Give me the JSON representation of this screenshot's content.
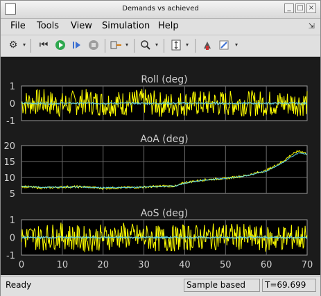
{
  "window": {
    "title": "Demands vs achieved"
  },
  "menu": {
    "items": [
      "File",
      "Tools",
      "View",
      "Simulation",
      "Help"
    ]
  },
  "toolbar": {
    "tools": [
      "gear-icon",
      "step-back-icon",
      "run-icon",
      "step-forward-icon",
      "stop-icon",
      "signal-select-icon",
      "zoom-icon",
      "fit-axes-icon",
      "highlight-icon",
      "style-icon"
    ]
  },
  "plots": [
    {
      "title": "Roll (deg)",
      "yticks": [
        "1",
        "0",
        "-1"
      ],
      "ylim": [
        -1,
        1
      ]
    },
    {
      "title": "AoA (deg)",
      "yticks": [
        "20",
        "15",
        "10",
        "5"
      ],
      "ylim": [
        5,
        20
      ]
    },
    {
      "title": "AoS (deg)",
      "yticks": [
        "1",
        "0",
        "-1"
      ],
      "ylim": [
        -1,
        1
      ]
    }
  ],
  "xticks": [
    "0",
    "10",
    "20",
    "30",
    "40",
    "50",
    "60",
    "70"
  ],
  "xlim": [
    0,
    70
  ],
  "status": {
    "ready": "Ready",
    "mode": "Sample based",
    "time": "T=69.699"
  },
  "colors": {
    "demand": "#ffff00",
    "achieved": "#5fd3e6",
    "background": "#1b1b1b",
    "axes": "#000000",
    "text": "#d0d0d0",
    "grid": "#6a6a6a"
  },
  "chart_data": [
    {
      "type": "line",
      "title": "Roll (deg)",
      "xlim": [
        0,
        70
      ],
      "ylim": [
        -1,
        1
      ],
      "series": [
        {
          "x": [
            0,
            5,
            10,
            15,
            20,
            25,
            30,
            35,
            40,
            45,
            50,
            55,
            60,
            65,
            70
          ],
          "values": [
            0,
            0.1,
            -0.1,
            0.1,
            0,
            0,
            0.1,
            -0.1,
            0,
            0,
            0,
            0,
            0,
            0,
            0
          ]
        },
        {
          "x": [
            0,
            5,
            10,
            15,
            20,
            25,
            30,
            35,
            40,
            45,
            50,
            55,
            60,
            65,
            70
          ],
          "values": [
            0,
            0,
            0,
            0,
            0,
            0,
            0,
            0,
            0,
            0,
            0,
            0,
            0,
            0,
            0
          ]
        }
      ]
    },
    {
      "type": "line",
      "title": "AoA (deg)",
      "xlim": [
        0,
        70
      ],
      "ylim": [
        5,
        20
      ],
      "series": [
        {
          "x": [
            0,
            5,
            10,
            15,
            20,
            25,
            30,
            35,
            38,
            40,
            45,
            50,
            55,
            60,
            64,
            66,
            68,
            70
          ],
          "values": [
            7.2,
            6.7,
            7,
            7.1,
            6.6,
            6.8,
            7,
            7.3,
            7.3,
            8.4,
            9.3,
            9.7,
            10.6,
            12.2,
            15,
            17,
            18.4,
            17.4
          ]
        },
        {
          "x": [
            0,
            5,
            10,
            15,
            20,
            25,
            30,
            35,
            38,
            40,
            45,
            50,
            55,
            60,
            64,
            66,
            68,
            70
          ],
          "values": [
            7.2,
            6.9,
            7,
            7,
            6.8,
            6.8,
            7,
            7.2,
            7.4,
            8.2,
            9.2,
            9.7,
            10.5,
            12,
            14.6,
            16.4,
            17.8,
            17.3
          ]
        }
      ]
    },
    {
      "type": "line",
      "title": "AoS (deg)",
      "xlim": [
        0,
        70
      ],
      "ylim": [
        -1,
        1
      ],
      "series": [
        {
          "x": [
            0,
            5,
            10,
            15,
            20,
            25,
            30,
            35,
            40,
            45,
            50,
            55,
            60,
            65,
            70
          ],
          "values": [
            0,
            0,
            0.1,
            -0.1,
            0,
            0.1,
            0,
            -0.1,
            0,
            0,
            0.1,
            0,
            -0.1,
            0,
            0
          ]
        },
        {
          "x": [
            0,
            5,
            10,
            15,
            20,
            25,
            30,
            35,
            40,
            45,
            50,
            55,
            60,
            65,
            70
          ],
          "values": [
            0,
            0,
            0,
            0,
            0,
            0,
            0,
            0,
            0,
            0,
            0,
            0,
            0,
            0,
            0
          ]
        }
      ]
    }
  ]
}
